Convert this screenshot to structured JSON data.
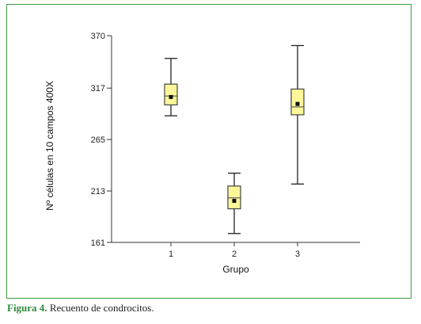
{
  "colors": {
    "frame": "#3f9a45",
    "box_fill": "#fdf79a",
    "box_stroke": "#444444",
    "caption_label": "#2e8b3a"
  },
  "caption": {
    "label": "Figura 4.",
    "text": " Recuento de condrocitos."
  },
  "chart_data": {
    "type": "boxplot",
    "xlabel": "Grupo",
    "ylabel": "Nº células en 10 campos 400X",
    "ylim": [
      161,
      370
    ],
    "yticks": [
      {
        "value": 161,
        "label": "161"
      },
      {
        "value": 213,
        "label": "213"
      },
      {
        "value": 265,
        "label": "265"
      },
      {
        "value": 317,
        "label": "317"
      },
      {
        "value": 370,
        "label": "370"
      }
    ],
    "categories": [
      "1",
      "2",
      "3"
    ],
    "boxes": [
      {
        "category": "1",
        "min": 289,
        "q1": 300,
        "median": 309,
        "q3": 321,
        "max": 347,
        "mean": 308
      },
      {
        "category": "2",
        "min": 170,
        "q1": 195,
        "median": 206,
        "q3": 218,
        "max": 231,
        "mean": 203
      },
      {
        "category": "3",
        "min": 220,
        "q1": 290,
        "median": 298,
        "q3": 316,
        "max": 360,
        "mean": 301
      }
    ],
    "grid": false,
    "legend": "none"
  }
}
